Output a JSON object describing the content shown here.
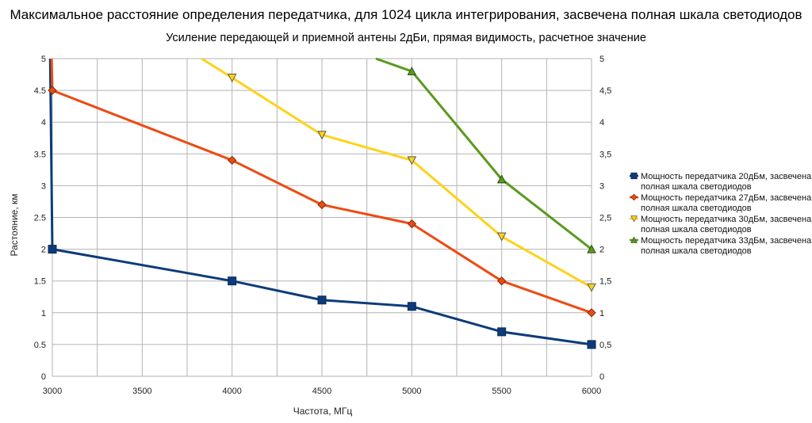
{
  "chart_data": {
    "type": "line",
    "title": "Максимальное расстояние определения передатчика, для 1024 цикла интегрирования, засвечена полная шкала светодиодов",
    "subtitle": "Усиление передающей и приемной антены 2дБи, прямая видимость, расчетное значение",
    "xlabel": "Частота, МГц",
    "ylabel": "Растояние, км",
    "xlim": [
      3000,
      6000
    ],
    "ylim": [
      0,
      5
    ],
    "x_ticks": [
      "3000",
      "3500",
      "4000",
      "4500",
      "5000",
      "5500",
      "6000"
    ],
    "y_ticks": [
      "0",
      "0.5",
      "1",
      "1.5",
      "2",
      "2.5",
      "3",
      "3.5",
      "4",
      "4.5",
      "5"
    ],
    "y2_ticks": [
      "0",
      "0,5",
      "1",
      "1,5",
      "2",
      "2,5",
      "3",
      "3,5",
      "4",
      "4,5",
      "5"
    ],
    "x_grid_step": 250,
    "grid": true,
    "legend_position": "right",
    "series": [
      {
        "name": "Мощность передатчика 20дБм, засвечена полная шкала светодиодов",
        "legend_lines": [
          "Мощность передатчика 20дБм, засвечена",
          "полная шкала светодиодов"
        ],
        "color": "#0d3b7a",
        "marker": "square",
        "x": [
          3000,
          4000,
          4500,
          5000,
          5500,
          6000
        ],
        "y": [
          2.0,
          1.5,
          1.2,
          1.1,
          0.7,
          0.5
        ],
        "lead_in": {
          "x": [
            2988,
            3000
          ],
          "y": [
            5.0,
            2.0
          ]
        }
      },
      {
        "name": "Мощность передатчика 27дБм, засвечена полная шкала светодиодов",
        "legend_lines": [
          "Мощность передатчика 27дБм, засвечена",
          "полная шкала светодиодов"
        ],
        "color": "#ee4a12",
        "marker": "diamond",
        "x": [
          3000,
          4000,
          4500,
          5000,
          5500,
          6000
        ],
        "y": [
          4.5,
          3.4,
          2.7,
          2.4,
          1.5,
          1.0
        ],
        "lead_in": {
          "x": [
            2996,
            3000
          ],
          "y": [
            5.0,
            4.5
          ]
        }
      },
      {
        "name": "Мощность передатчика 30дБм, засвечена полная шкала светодиодов",
        "legend_lines": [
          "Мощность передатчика 30дБм, засвечена",
          "полная шкала светодиодов"
        ],
        "color": "#ffd21a",
        "marker": "triangle-down",
        "x": [
          4000,
          4500,
          5000,
          5500,
          6000
        ],
        "y": [
          4.7,
          3.8,
          3.4,
          2.2,
          1.4
        ],
        "lead_in": {
          "x": [
            3830,
            4000
          ],
          "y": [
            5.0,
            4.7
          ]
        }
      },
      {
        "name": "Мощность передатчика 33дБм, засвечена полная шкала светодиодов",
        "legend_lines": [
          "Мощность передатчика 33дБм, засвечена",
          "полная шкала светодиодов"
        ],
        "color": "#5a9a1e",
        "marker": "triangle-up",
        "x": [
          5000,
          5500,
          6000
        ],
        "y": [
          4.8,
          3.1,
          2.0
        ],
        "lead_in": {
          "x": [
            4800,
            5000
          ],
          "y": [
            5.0,
            4.8
          ]
        }
      }
    ]
  }
}
